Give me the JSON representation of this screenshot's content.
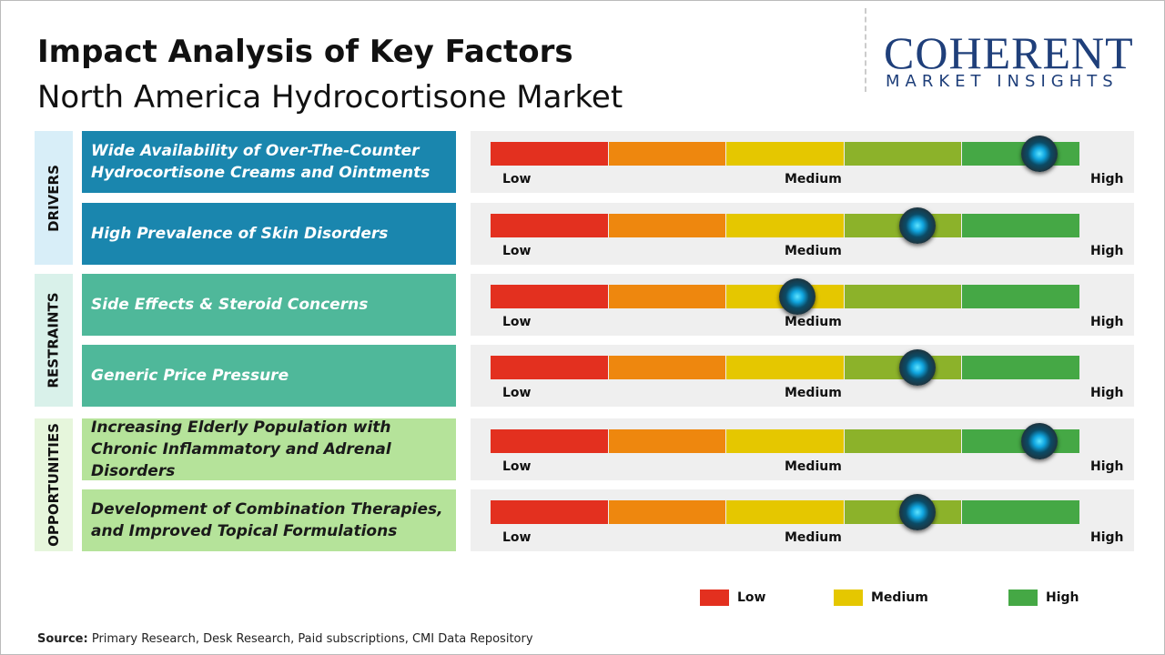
{
  "header": {
    "title": "Impact Analysis of Key Factors",
    "subtitle": "North America Hydrocortisone Market"
  },
  "logo": {
    "name": "COHERENT",
    "tagline": "MARKET INSIGHTS"
  },
  "impact_range": [
    0,
    5
  ],
  "scale_labels": {
    "low": "Low",
    "medium": "Medium",
    "high": "High"
  },
  "segment_colors": [
    "#e3301f",
    "#ee870e",
    "#e5c700",
    "#8cb22a",
    "#45a845"
  ],
  "groups": [
    {
      "label": "DRIVERS",
      "color": "#1a86ae",
      "band": "#d8eef8",
      "text_color": "#ffffff",
      "factors": [
        {
          "text": "Wide Availability of Over-The-Counter Hydrocortisone Creams and Ointments",
          "impact": 4.65
        },
        {
          "text": "High Prevalence of Skin Disorders",
          "impact": 3.62
        }
      ]
    },
    {
      "label": "RESTRAINTS",
      "color": "#4fb89a",
      "band": "#d9f1ea",
      "text_color": "#ffffff",
      "factors": [
        {
          "text": "Side Effects & Steroid Concerns",
          "impact": 2.6
        },
        {
          "text": "Generic Price Pressure",
          "impact": 3.62
        }
      ]
    },
    {
      "label": "OPPORTUNITIES",
      "color": "#b5e39a",
      "band": "#e6f6dc",
      "text_color": "#1a1a1a",
      "factors": [
        {
          "text": "Increasing Elderly Population with Chronic Inflammatory and Adrenal Disorders",
          "impact": 4.65
        },
        {
          "text": "Development of Combination Therapies, and Improved Topical Formulations",
          "impact": 3.62
        }
      ]
    }
  ],
  "legend": [
    {
      "label": "Low",
      "color": "#e3301f"
    },
    {
      "label": "Medium",
      "color": "#e5c700"
    },
    {
      "label": "High",
      "color": "#45a845"
    }
  ],
  "source": {
    "label": "Source:",
    "text": "Primary Research, Desk Research, Paid subscriptions, CMI Data Repository"
  }
}
